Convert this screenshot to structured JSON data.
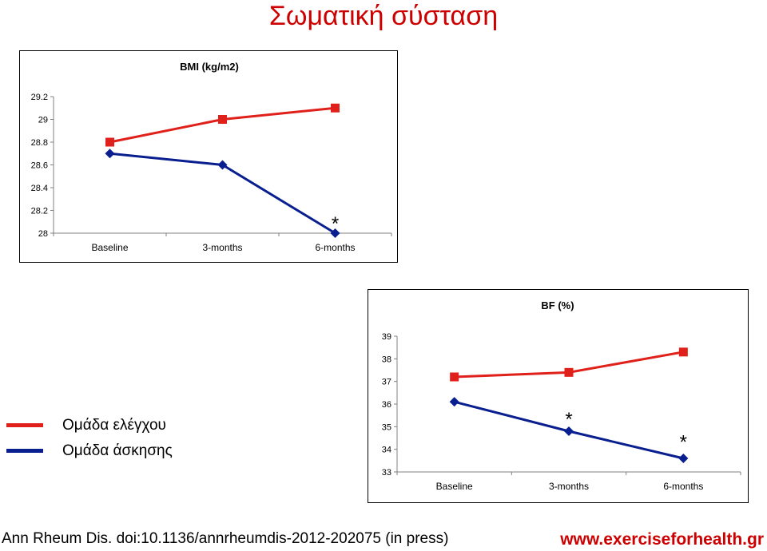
{
  "page_title": "Σωματική σύσταση",
  "legend": [
    {
      "label": "Ομάδα ελέγχου",
      "color": "#e0201a"
    },
    {
      "label": "Ομάδα άσκησης",
      "color": "#0a1f8f"
    }
  ],
  "footer": {
    "citation": "Ann Rheum Dis. doi:10.1136/annrheumdis-2012-202075 (in press)",
    "url": "www.exerciseforhealth.gr"
  },
  "chart_data": [
    {
      "type": "line",
      "title": "BMI (kg/m2)",
      "categories": [
        "Baseline",
        "3-months",
        "6-months"
      ],
      "ylim": [
        28,
        29.2
      ],
      "yticks": [
        "28",
        "28.2",
        "28.4",
        "28.6",
        "28.8",
        "29",
        "29.2"
      ],
      "grid": false,
      "series": [
        {
          "name": "Ομάδα ελέγχου",
          "color": "#e0201a",
          "marker": "square",
          "values": [
            28.8,
            29.0,
            29.1
          ]
        },
        {
          "name": "Ομάδα άσκησης",
          "color": "#0a1f8f",
          "marker": "diamond",
          "values": [
            28.7,
            28.6,
            28.0
          ]
        }
      ],
      "annotations": [
        {
          "text": "*",
          "category_index": 2,
          "y": 28.1
        }
      ]
    },
    {
      "type": "line",
      "title": "BF (%)",
      "categories": [
        "Baseline",
        "3-months",
        "6-months"
      ],
      "ylim": [
        33,
        39
      ],
      "yticks": [
        "33",
        "34",
        "35",
        "36",
        "37",
        "38",
        "39"
      ],
      "grid": false,
      "series": [
        {
          "name": "Ομάδα ελέγχου",
          "color": "#e0201a",
          "marker": "square",
          "values": [
            37.2,
            37.4,
            38.3
          ]
        },
        {
          "name": "Ομάδα άσκησης",
          "color": "#0a1f8f",
          "marker": "diamond",
          "values": [
            36.1,
            34.8,
            33.6
          ]
        }
      ],
      "annotations": [
        {
          "text": "*",
          "category_index": 1,
          "y": 35.4
        },
        {
          "text": "*",
          "category_index": 2,
          "y": 34.4
        }
      ]
    }
  ]
}
